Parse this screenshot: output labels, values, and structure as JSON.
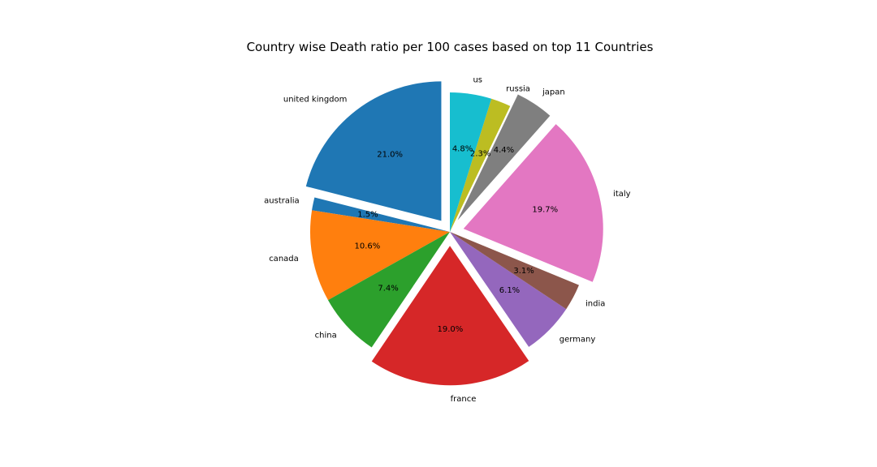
{
  "chart_data": {
    "type": "pie",
    "title": "Country wise Death ratio per 100 cases based on top 11 Countries",
    "start_angle_deg": 90,
    "direction": "counterclockwise",
    "labels": [
      "united kingdom",
      "australia",
      "canada",
      "china",
      "france",
      "germany",
      "india",
      "italy",
      "japan",
      "russia",
      "us"
    ],
    "values": [
      21.0,
      1.5,
      10.6,
      7.4,
      19.0,
      6.1,
      3.1,
      19.7,
      4.4,
      2.3,
      4.8
    ],
    "percent_labels": [
      "21.0%",
      "1.5%",
      "10.6%",
      "7.4%",
      "19.0%",
      "6.1%",
      "3.1%",
      "19.7%",
      "4.4%",
      "2.3%",
      "4.8%"
    ],
    "exploded": [
      true,
      false,
      false,
      false,
      true,
      false,
      false,
      true,
      true,
      false,
      false
    ],
    "colors": [
      "#1f77b4",
      "#1f77b4",
      "#ff7f0e",
      "#2ca02c",
      "#d62728",
      "#9467bd",
      "#8c564b",
      "#e377c2",
      "#7f7f7f",
      "#bcbd22",
      "#17becf"
    ]
  }
}
